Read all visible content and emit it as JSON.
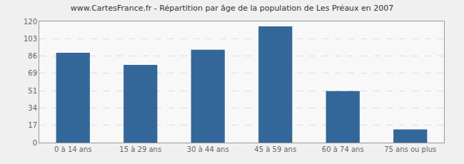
{
  "chart_data": {
    "type": "bar",
    "title": "www.CartesFrance.fr - Répartition par âge de la population de Les Préaux en 2007",
    "categories": [
      "0 à 14 ans",
      "15 à 29 ans",
      "30 à 44 ans",
      "45 à 59 ans",
      "60 à 74 ans",
      "75 ans ou plus"
    ],
    "values": [
      89,
      77,
      92,
      115,
      51,
      13
    ],
    "color": "#336699",
    "ylim": [
      0,
      120
    ],
    "yticks": [
      0,
      17,
      34,
      51,
      69,
      86,
      103,
      120
    ],
    "grid": true
  }
}
